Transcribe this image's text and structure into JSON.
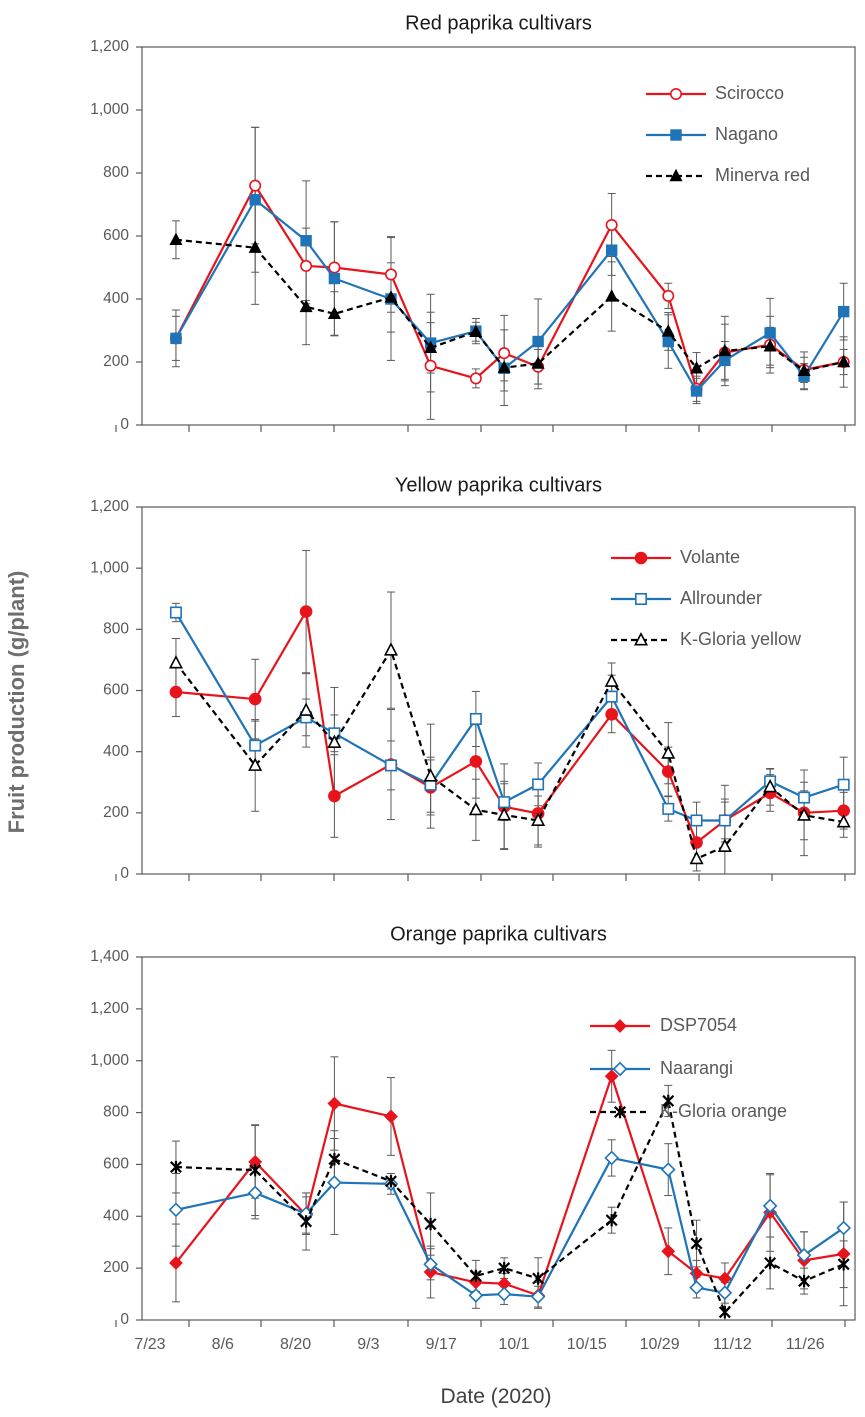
{
  "figure": {
    "shared_ylabel": "Fruit production (g/plant)",
    "shared_xlabel": "Date (2020)",
    "x_tick_labels": [
      "7/23",
      "8/6",
      "8/20",
      "9/3",
      "9/17",
      "10/1",
      "10/15",
      "10/29",
      "11/12",
      "11/26"
    ]
  },
  "colors": {
    "red": "#e8141c",
    "blue": "#1f74b8",
    "black": "#000000",
    "frame": "#595959",
    "errbar": "#5a5a5a"
  },
  "chart_data": [
    {
      "type": "line",
      "title": "Red paprika cultivars",
      "xlabel": "Date (2020)",
      "ylabel": "Fruit production (g/plant)",
      "x_unit": "days after 7/23/2020",
      "xlim": [
        0,
        126
      ],
      "ylim": [
        0,
        1200
      ],
      "ystep": 200,
      "ytick_labels": [
        "0",
        "200",
        "400",
        "600",
        "800",
        "1,000",
        "1,200"
      ],
      "legend_position": "top-right",
      "series": [
        {
          "name": "Scirocco",
          "color": "#e8141c",
          "dash": false,
          "marker": "circle-open",
          "x": [
            6,
            20,
            29,
            34,
            44,
            51,
            59,
            64,
            70,
            83,
            93,
            98,
            103,
            111,
            117,
            124
          ],
          "values": [
            275,
            760,
            505,
            500,
            478,
            188,
            148,
            228,
            185,
            635,
            410,
            115,
            230,
            255,
            175,
            200
          ],
          "errors": [
            70,
            185,
            120,
            145,
            120,
            170,
            30,
            120,
            55,
            100,
            40,
            40,
            90,
            90,
            40,
            40
          ]
        },
        {
          "name": "Nagano",
          "color": "#1f74b8",
          "dash": false,
          "marker": "square-filled",
          "x": [
            6,
            20,
            29,
            34,
            44,
            51,
            59,
            64,
            70,
            83,
            93,
            98,
            103,
            111,
            117,
            124
          ],
          "values": [
            275,
            715,
            585,
            465,
            400,
            260,
            298,
            180,
            265,
            555,
            265,
            108,
            205,
            292,
            155,
            360
          ],
          "errors": [
            90,
            230,
            190,
            180,
            195,
            155,
            40,
            40,
            135,
            80,
            85,
            40,
            60,
            110,
            40,
            90
          ]
        },
        {
          "name": "Minerva red",
          "color": "#000000",
          "dash": true,
          "marker": "triangle-filled",
          "x": [
            6,
            20,
            29,
            34,
            44,
            51,
            59,
            64,
            70,
            83,
            93,
            98,
            103,
            111,
            117,
            124
          ],
          "values": [
            588,
            563,
            375,
            353,
            405,
            245,
            296,
            182,
            195,
            408,
            297,
            180,
            235,
            250,
            172,
            200
          ],
          "errors": [
            60,
            180,
            120,
            70,
            110,
            80,
            30,
            120,
            80,
            110,
            60,
            50,
            110,
            60,
            60,
            80
          ]
        }
      ]
    },
    {
      "type": "line",
      "title": "Yellow paprika cultivars",
      "xlabel": "Date (2020)",
      "ylabel": "Fruit production (g/plant)",
      "x_unit": "days after 7/23/2020",
      "xlim": [
        0,
        126
      ],
      "ylim": [
        0,
        1200
      ],
      "ystep": 200,
      "ytick_labels": [
        "0",
        "200",
        "400",
        "600",
        "800",
        "1,000",
        "1,200"
      ],
      "legend_position": "top-right",
      "series": [
        {
          "name": "Volante",
          "color": "#e8141c",
          "dash": false,
          "marker": "circle-filled",
          "x": [
            6,
            20,
            29,
            34,
            44,
            51,
            59,
            64,
            70,
            83,
            93,
            98,
            103,
            111,
            117,
            124
          ],
          "values": [
            595,
            572,
            858,
            255,
            358,
            283,
            368,
            220,
            198,
            522,
            335,
            103,
            175,
            265,
            200,
            207
          ],
          "errors": [
            80,
            130,
            200,
            135,
            180,
            90,
            120,
            140,
            110,
            60,
            80,
            60,
            70,
            60,
            140,
            60
          ]
        },
        {
          "name": "Allrounder",
          "color": "#1f74b8",
          "dash": false,
          "marker": "square-open",
          "x": [
            6,
            20,
            29,
            34,
            44,
            51,
            59,
            64,
            70,
            83,
            93,
            98,
            103,
            111,
            117,
            124
          ],
          "values": [
            855,
            420,
            512,
            460,
            355,
            292,
            507,
            235,
            293,
            580,
            213,
            175,
            175,
            303,
            250,
            292
          ],
          "errors": [
            30,
            80,
            60,
            60,
            80,
            90,
            90,
            60,
            70,
            70,
            40,
            60,
            60,
            40,
            50,
            90
          ]
        },
        {
          "name": "K-Gloria yellow",
          "color": "#000000",
          "dash": true,
          "marker": "triangle-open",
          "x": [
            6,
            20,
            29,
            34,
            44,
            51,
            59,
            64,
            70,
            83,
            93,
            98,
            103,
            111,
            117,
            124
          ],
          "values": [
            690,
            355,
            535,
            430,
            732,
            320,
            210,
            193,
            175,
            630,
            395,
            50,
            90,
            285,
            192,
            170
          ],
          "errors": [
            80,
            150,
            120,
            180,
            190,
            170,
            100,
            110,
            80,
            60,
            100,
            40,
            200,
            60,
            80,
            50
          ]
        }
      ]
    },
    {
      "type": "line",
      "title": "Orange paprika cultivars",
      "xlabel": "Date (2020)",
      "ylabel": "Fruit production (g/plant)",
      "x_unit": "days after 7/23/2020",
      "xlim": [
        0,
        126
      ],
      "ylim": [
        0,
        1400
      ],
      "ystep": 200,
      "ytick_labels": [
        "0",
        "200",
        "400",
        "600",
        "800",
        "1,000",
        "1,200",
        "1,400"
      ],
      "legend_position": "top-right",
      "series": [
        {
          "name": "DSP7054",
          "color": "#e8141c",
          "dash": false,
          "marker": "diamond-filled",
          "x": [
            6,
            20,
            29,
            34,
            44,
            51,
            59,
            64,
            70,
            83,
            93,
            98,
            103,
            111,
            117,
            124
          ],
          "values": [
            220,
            610,
            405,
            835,
            785,
            185,
            145,
            140,
            95,
            940,
            265,
            180,
            160,
            415,
            230,
            255
          ],
          "errors": [
            150,
            140,
            70,
            180,
            150,
            100,
            40,
            40,
            50,
            100,
            90,
            50,
            60,
            150,
            110,
            200
          ]
        },
        {
          "name": "Naarangi",
          "color": "#1f74b8",
          "dash": false,
          "marker": "diamond-open",
          "x": [
            6,
            20,
            29,
            34,
            44,
            51,
            59,
            64,
            70,
            83,
            93,
            98,
            103,
            111,
            117,
            124
          ],
          "values": [
            425,
            490,
            410,
            530,
            525,
            215,
            95,
            100,
            90,
            625,
            580,
            125,
            105,
            440,
            250,
            355
          ],
          "errors": [
            140,
            100,
            80,
            200,
            40,
            60,
            50,
            40,
            40,
            70,
            100,
            40,
            40,
            120,
            90,
            100
          ]
        },
        {
          "name": "K-Gloria orange",
          "color": "#000000",
          "dash": true,
          "marker": "x-star",
          "x": [
            6,
            20,
            29,
            34,
            44,
            51,
            59,
            64,
            70,
            83,
            93,
            98,
            103,
            111,
            117,
            124
          ],
          "values": [
            590,
            578,
            380,
            620,
            535,
            370,
            170,
            200,
            160,
            385,
            845,
            295,
            30,
            220,
            150,
            215
          ],
          "errors": [
            100,
            175,
            110,
            80,
            30,
            120,
            60,
            40,
            80,
            50,
            60,
            90,
            130,
            100,
            50,
            90
          ]
        }
      ]
    }
  ]
}
